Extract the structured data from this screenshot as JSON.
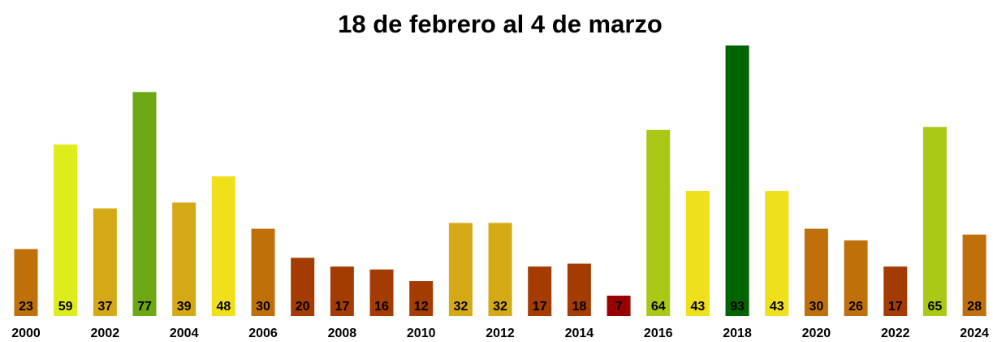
{
  "chart_data": {
    "type": "bar",
    "title": "18 de febrero al 4 de marzo",
    "categories": [
      "2000",
      null,
      "2002",
      null,
      "2004",
      null,
      "2006",
      null,
      "2008",
      null,
      "2010",
      null,
      "2012",
      null,
      "2014",
      null,
      "2016",
      null,
      "2018",
      null,
      "2020",
      null,
      "2022",
      null,
      "2024"
    ],
    "values": [
      23,
      59,
      37,
      77,
      39,
      48,
      30,
      20,
      17,
      16,
      12,
      32,
      32,
      17,
      18,
      7,
      64,
      43,
      93,
      43,
      30,
      26,
      17,
      65,
      28
    ],
    "colors": [
      "#c0700a",
      "#dfec1c",
      "#d5a915",
      "#6da815",
      "#d5a915",
      "#f0e01c",
      "#c0700a",
      "#a43c02",
      "#a43c02",
      "#a43c02",
      "#a43c02",
      "#d5a915",
      "#d5a915",
      "#a43c02",
      "#a43c02",
      "#9a0000",
      "#a9c916",
      "#f0e01c",
      "#006400",
      "#f0e01c",
      "#c0700a",
      "#c0700a",
      "#a43c02",
      "#a9c916",
      "#c0700a"
    ]
  }
}
